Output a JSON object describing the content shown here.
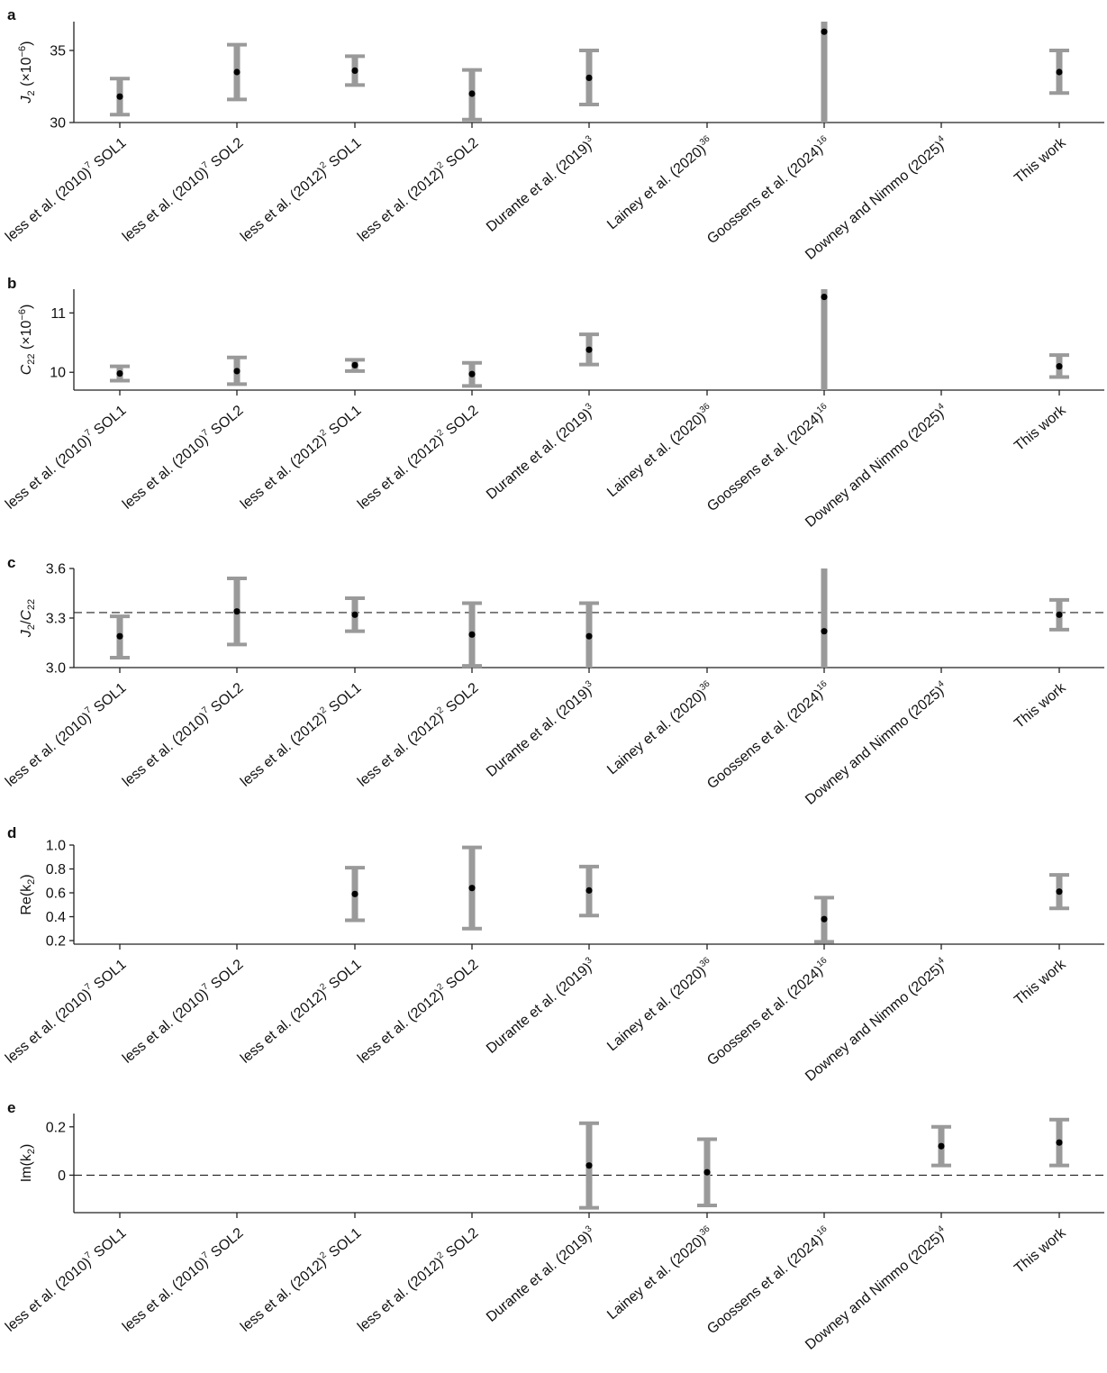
{
  "chart_data": {
    "categories": [
      {
        "name": "less et al. (2010)",
        "sup": "7",
        "suffix": " SOL1"
      },
      {
        "name": "less et al. (2010)",
        "sup": "7",
        "suffix": " SOL2"
      },
      {
        "name": "less et al. (2012)",
        "sup": "2",
        "suffix": " SOL1"
      },
      {
        "name": "less et al. (2012)",
        "sup": "2",
        "suffix": " SOL2"
      },
      {
        "name": "Durante et al. (2019)",
        "sup": "3",
        "suffix": ""
      },
      {
        "name": "Lainey et al. (2020)",
        "sup": "36",
        "suffix": ""
      },
      {
        "name": "Goossens et al. (2024)",
        "sup": "16",
        "suffix": ""
      },
      {
        "name": "Downey and Nimmo (2025)",
        "sup": "4",
        "suffix": ""
      },
      {
        "name": "This work",
        "sup": "",
        "suffix": ""
      }
    ],
    "panels": [
      {
        "letter": "a",
        "type": "scatter",
        "ylabel": {
          "main": "J",
          "sub": "2",
          "unit_prefix": " (×10",
          "unit_sup": "−6",
          "unit_suffix": ")"
        },
        "ylim": [
          30,
          37
        ],
        "yticks": [
          30,
          35
        ],
        "ytick_labels": [
          "30",
          "35"
        ],
        "ref_line": null,
        "points": [
          {
            "cat": 0,
            "value": 31.8,
            "low": 30.55,
            "high": 33.05
          },
          {
            "cat": 1,
            "value": 33.5,
            "low": 31.6,
            "high": 35.4
          },
          {
            "cat": 2,
            "value": 33.6,
            "low": 32.6,
            "high": 34.6
          },
          {
            "cat": 3,
            "value": 32.0,
            "low": 30.2,
            "high": 33.65
          },
          {
            "cat": 4,
            "value": 33.1,
            "low": 31.25,
            "high": 35.0
          },
          {
            "cat": 6,
            "value": 36.3,
            "low": 30.0,
            "high": 37.0
          },
          {
            "cat": 8,
            "value": 33.5,
            "low": 32.05,
            "high": 35.0
          }
        ]
      },
      {
        "letter": "b",
        "type": "scatter",
        "ylabel": {
          "main": "C",
          "sub": "22",
          "unit_prefix": " (×10",
          "unit_sup": "−6",
          "unit_suffix": ")"
        },
        "ylim": [
          9.7,
          11.4
        ],
        "yticks": [
          10,
          11
        ],
        "ytick_labels": [
          "10",
          "11"
        ],
        "ref_line": null,
        "points": [
          {
            "cat": 0,
            "value": 9.98,
            "low": 9.86,
            "high": 10.1
          },
          {
            "cat": 1,
            "value": 10.02,
            "low": 9.8,
            "high": 10.25
          },
          {
            "cat": 2,
            "value": 10.12,
            "low": 10.02,
            "high": 10.21
          },
          {
            "cat": 3,
            "value": 9.97,
            "low": 9.77,
            "high": 10.16
          },
          {
            "cat": 4,
            "value": 10.38,
            "low": 10.13,
            "high": 10.64
          },
          {
            "cat": 6,
            "value": 11.27,
            "low": 9.7,
            "high": 11.4
          },
          {
            "cat": 8,
            "value": 10.1,
            "low": 9.92,
            "high": 10.29
          }
        ]
      },
      {
        "letter": "c",
        "type": "scatter",
        "ylabel": {
          "main": "J",
          "sub": "2",
          "slash": "/",
          "main2": "C",
          "sub2": "22"
        },
        "ylim": [
          3.0,
          3.6
        ],
        "yticks": [
          3.0,
          3.3,
          3.6
        ],
        "ytick_labels": [
          "3.0",
          "3.3",
          "3.6"
        ],
        "ref_line": 3.333,
        "points": [
          {
            "cat": 0,
            "value": 3.19,
            "low": 3.06,
            "high": 3.31
          },
          {
            "cat": 1,
            "value": 3.34,
            "low": 3.14,
            "high": 3.54
          },
          {
            "cat": 2,
            "value": 3.32,
            "low": 3.22,
            "high": 3.42
          },
          {
            "cat": 3,
            "value": 3.2,
            "low": 3.01,
            "high": 3.39
          },
          {
            "cat": 4,
            "value": 3.19,
            "low": 3.0,
            "high": 3.39
          },
          {
            "cat": 6,
            "value": 3.22,
            "low": 3.0,
            "high": 3.6
          },
          {
            "cat": 8,
            "value": 3.32,
            "low": 3.23,
            "high": 3.41
          }
        ]
      },
      {
        "letter": "d",
        "type": "scatter",
        "ylabel": {
          "main": "Re(k",
          "sub": "2",
          "tail": ")"
        },
        "ylim": [
          0.17,
          1.0
        ],
        "yticks": [
          0.2,
          0.4,
          0.6,
          0.8,
          1.0
        ],
        "ytick_labels": [
          "0.2",
          "0.4",
          "0.6",
          "0.8",
          "1.0"
        ],
        "ref_line": null,
        "points": [
          {
            "cat": 2,
            "value": 0.59,
            "low": 0.37,
            "high": 0.81
          },
          {
            "cat": 3,
            "value": 0.64,
            "low": 0.3,
            "high": 0.98
          },
          {
            "cat": 4,
            "value": 0.62,
            "low": 0.41,
            "high": 0.82
          },
          {
            "cat": 6,
            "value": 0.38,
            "low": 0.19,
            "high": 0.56
          },
          {
            "cat": 8,
            "value": 0.61,
            "low": 0.47,
            "high": 0.75
          }
        ]
      },
      {
        "letter": "e",
        "type": "scatter",
        "ylabel": {
          "main": "Im(k",
          "sub": "2",
          "tail": ")"
        },
        "ylim": [
          -0.155,
          0.255
        ],
        "yticks": [
          0,
          0.2
        ],
        "ytick_labels": [
          "0",
          "0.2"
        ],
        "ref_line": 0,
        "points": [
          {
            "cat": 4,
            "value": 0.04,
            "low": -0.135,
            "high": 0.215
          },
          {
            "cat": 5,
            "value": 0.012,
            "low": -0.125,
            "high": 0.149
          },
          {
            "cat": 7,
            "value": 0.12,
            "low": 0.04,
            "high": 0.2
          },
          {
            "cat": 8,
            "value": 0.135,
            "low": 0.04,
            "high": 0.23
          }
        ]
      }
    ]
  }
}
